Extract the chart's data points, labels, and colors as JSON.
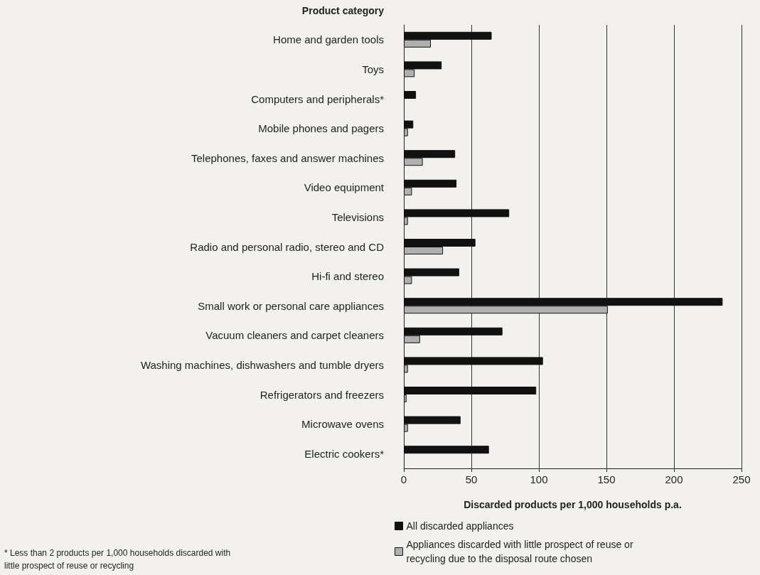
{
  "chart_data": {
    "type": "bar",
    "orientation": "horizontal",
    "ylabel": "Product category",
    "xlabel": "Discarded products per 1,000 households p.a.",
    "categories": [
      "Home and garden tools",
      "Toys",
      "Computers and peripherals*",
      "Mobile phones and pagers",
      "Telephones, faxes and answer machines",
      "Video equipment",
      "Televisions",
      "Radio and personal radio, stereo and CD",
      "Hi-fi and stereo",
      "Small work or personal care appliances",
      "Vacuum cleaners and carpet cleaners",
      "Washing machines, dishwashers and tumble dryers",
      "Refrigerators and freezers",
      "Microwave ovens",
      "Electric cookers*"
    ],
    "series": [
      {
        "name": "All discarded appliances",
        "color": "#111111",
        "values": [
          65,
          28,
          9,
          7,
          38,
          39,
          78,
          53,
          41,
          236,
          73,
          103,
          98,
          42,
          63
        ]
      },
      {
        "name": "Appliances discarded with little prospect of reuse or recycling due to the disposal route chosen",
        "color": "#b0b0b0",
        "values": [
          20,
          8,
          null,
          3,
          14,
          6,
          3,
          29,
          6,
          151,
          12,
          3,
          2,
          3,
          null
        ]
      }
    ],
    "xlim": [
      0,
      250
    ],
    "xticks": [
      0,
      50,
      100,
      150,
      200,
      250
    ],
    "grid": "x",
    "legend": "bottom",
    "annotations": [
      "* Less than 2 products per 1,000 households discarded with little prospect of reuse or recycling"
    ]
  }
}
